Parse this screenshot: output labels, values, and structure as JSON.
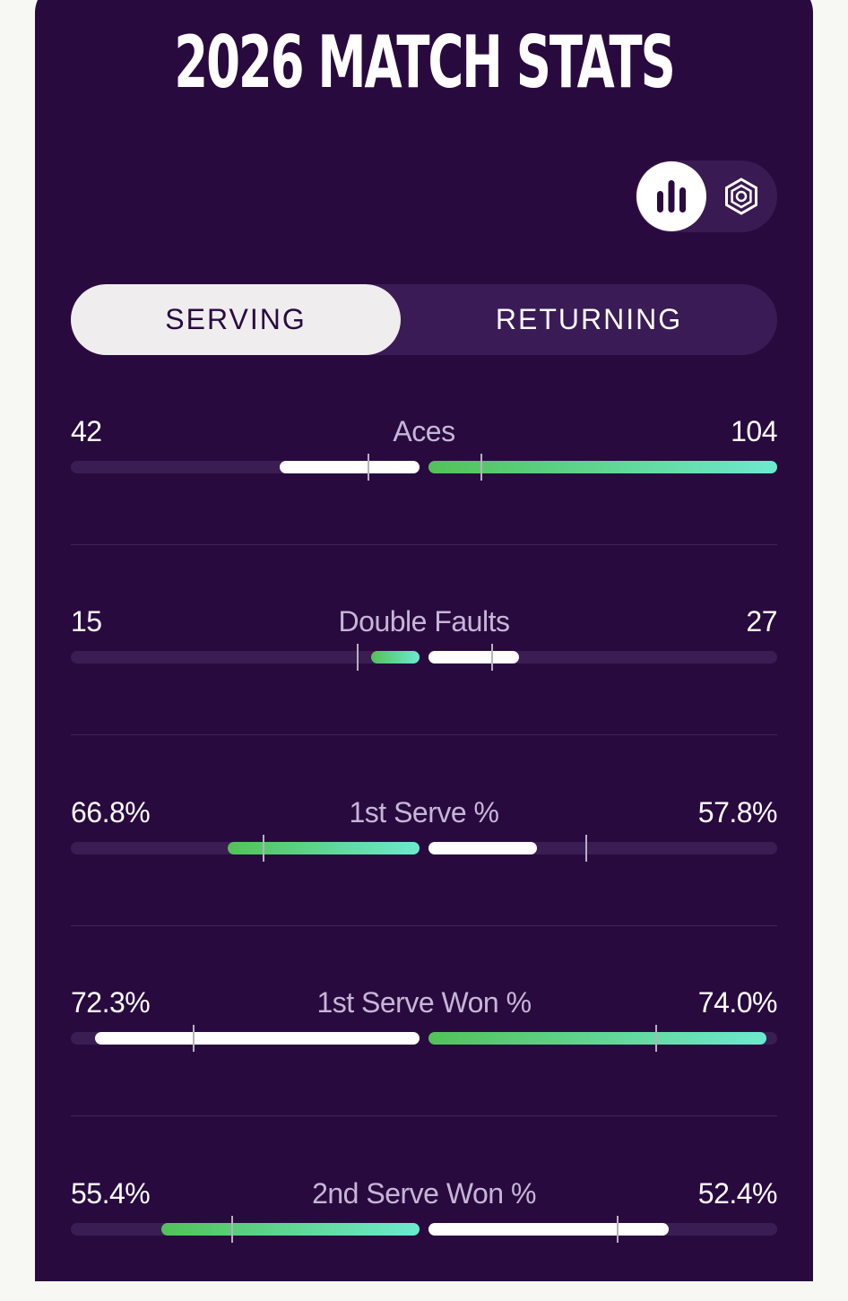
{
  "header": {
    "title": "2026 MATCH STATS"
  },
  "view_toggle": {
    "chart_icon": "bar-chart-icon",
    "settings_icon": "hexagon-settings-icon"
  },
  "tabs": [
    {
      "label": "SERVING",
      "active": true
    },
    {
      "label": "RETURNING",
      "active": false
    }
  ],
  "colors": {
    "background": "#290a3f",
    "track": "#3a1d52",
    "leader_gradient_start": "#52c257",
    "leader_gradient_end": "#6de9cf",
    "other": "#ffffff",
    "label": "#c6b6d6"
  },
  "stats": [
    {
      "label": "Aces",
      "left": "42",
      "right": "104",
      "left_fill": 0.4,
      "right_fill": 1.0,
      "left_color": "white",
      "right_color": "green",
      "left_marker": 0.15,
      "right_marker": 0.15
    },
    {
      "label": "Double Faults",
      "left": "15",
      "right": "27",
      "left_fill": 0.14,
      "right_fill": 0.26,
      "left_color": "green",
      "right_color": "white",
      "left_marker": 0.18,
      "right_marker": 0.18
    },
    {
      "label": "1st Serve %",
      "left": "66.8%",
      "right": "57.8%",
      "left_fill": 0.55,
      "right_fill": 0.31,
      "left_color": "green",
      "right_color": "white",
      "left_marker": 0.45,
      "right_marker": 0.45
    },
    {
      "label": "1st Serve Won %",
      "left": "72.3%",
      "right": "74.0%",
      "left_fill": 0.93,
      "right_fill": 0.97,
      "left_color": "white",
      "right_color": "green",
      "left_marker": 0.65,
      "right_marker": 0.65
    },
    {
      "label": "2nd Serve Won %",
      "left": "55.4%",
      "right": "52.4%",
      "left_fill": 0.74,
      "right_fill": 0.69,
      "left_color": "green",
      "right_color": "white",
      "left_marker": 0.54,
      "right_marker": 0.54
    }
  ]
}
